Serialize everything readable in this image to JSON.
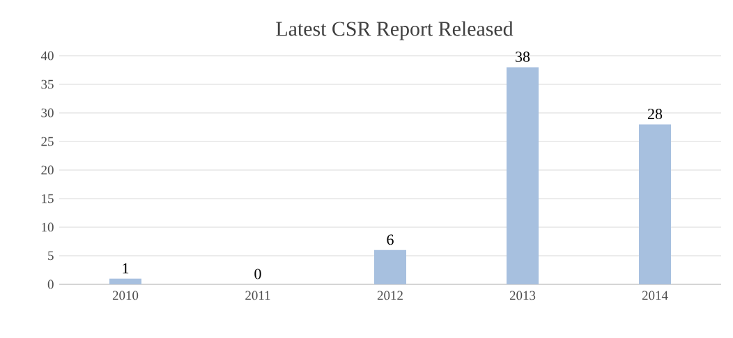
{
  "chart_data": {
    "type": "bar",
    "title": "Latest CSR Report Released",
    "categories": [
      "2010",
      "2011",
      "2012",
      "2013",
      "2014"
    ],
    "values": [
      1,
      0,
      6,
      38,
      28
    ],
    "color": "#a7c0df",
    "ylim": [
      0,
      40
    ],
    "yticks": [
      0,
      5,
      10,
      15,
      20,
      25,
      30,
      35,
      40
    ],
    "grid": "y",
    "data_labels": true
  }
}
